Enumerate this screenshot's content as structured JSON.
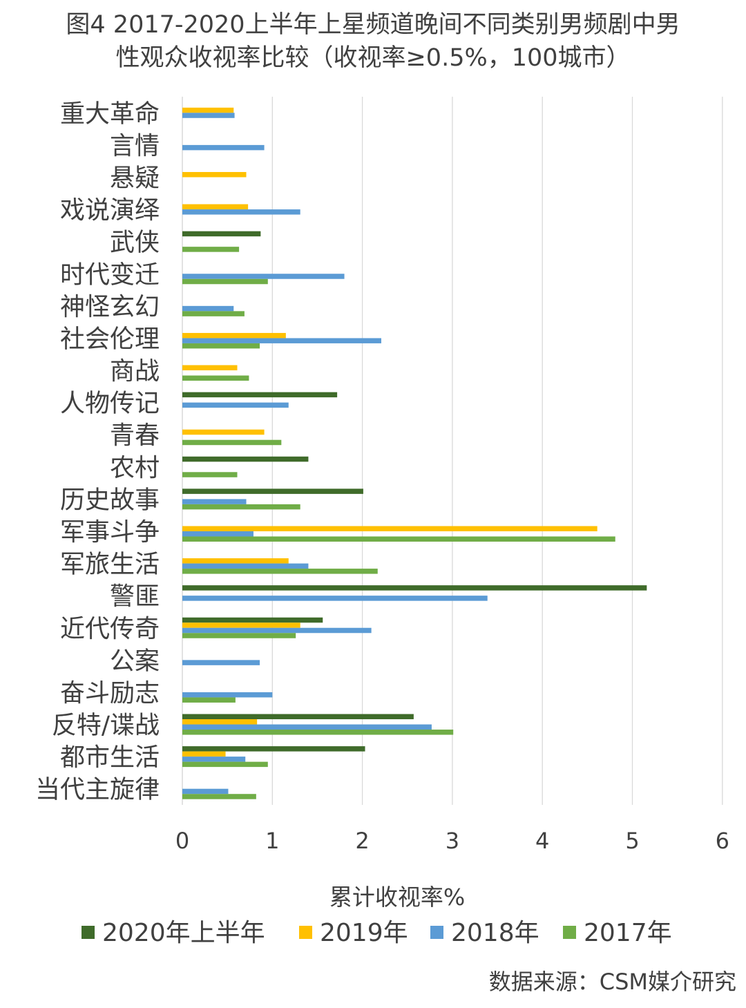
{
  "title_line1": "图4  2017-2020上半年上星频道晚间不同类别男频剧中男",
  "title_line2": "性观众收视率比较（收视率≥0.5%，100城市）",
  "source": "数据来源：CSM媒介研究",
  "chart_data": {
    "type": "bar",
    "orientation": "horizontal",
    "xlabel": "累计收视率%",
    "xlim": [
      0,
      6
    ],
    "xticks": [
      0,
      1,
      2,
      3,
      4,
      5,
      6
    ],
    "grid": true,
    "legend_position": "bottom",
    "categories": [
      "重大革命",
      "言情",
      "悬疑",
      "戏说演绎",
      "武侠",
      "时代变迁",
      "神怪玄幻",
      "社会伦理",
      "商战",
      "人物传记",
      "青春",
      "农村",
      "历史故事",
      "军事斗争",
      "军旅生活",
      "警匪",
      "近代传奇",
      "公案",
      "奋斗励志",
      "反特/谍战",
      "都市生活",
      "当代主旋律"
    ],
    "series": [
      {
        "name": "2020年上半年",
        "color": "#3f6b2a",
        "values": [
          null,
          null,
          null,
          null,
          0.87,
          null,
          null,
          null,
          null,
          1.72,
          null,
          1.4,
          2.01,
          null,
          null,
          5.16,
          1.56,
          null,
          null,
          2.57,
          2.03,
          null
        ]
      },
      {
        "name": "2019年",
        "color": "#ffc000",
        "values": [
          0.57,
          null,
          0.71,
          0.73,
          null,
          null,
          null,
          1.15,
          0.61,
          null,
          0.91,
          null,
          null,
          4.61,
          1.18,
          null,
          1.31,
          null,
          null,
          0.83,
          0.48,
          null
        ]
      },
      {
        "name": "2018年",
        "color": "#5b9bd5",
        "values": [
          0.58,
          0.91,
          null,
          1.31,
          null,
          1.8,
          0.57,
          2.21,
          null,
          1.18,
          null,
          null,
          0.71,
          0.79,
          1.4,
          3.39,
          2.1,
          0.86,
          1.0,
          2.77,
          0.7,
          0.51
        ]
      },
      {
        "name": "2017年",
        "color": "#70ad47",
        "values": [
          null,
          null,
          null,
          null,
          0.63,
          0.95,
          0.69,
          0.86,
          0.74,
          null,
          1.1,
          0.61,
          1.31,
          4.81,
          2.17,
          null,
          1.26,
          null,
          0.59,
          3.01,
          0.95,
          0.82
        ]
      }
    ]
  }
}
